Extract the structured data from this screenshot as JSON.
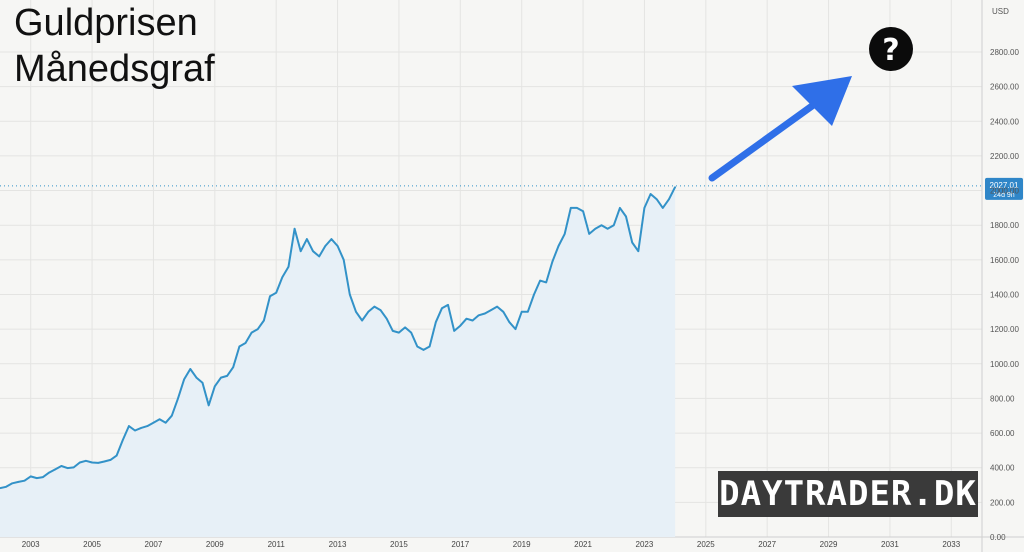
{
  "header": {
    "title_line1": "Guldprisen",
    "title_line2": "Månedsgraf"
  },
  "watermark": "DAYTRADER.DK",
  "annotation": {
    "question_mark": "?",
    "arrow_color": "#2f6fe8"
  },
  "price_label": {
    "value": "2027.01",
    "countdown": "24d 9h"
  },
  "chart_data": {
    "type": "area",
    "ylabel": "USD",
    "ylim": [
      0,
      3100
    ],
    "xlim": [
      2002.0,
      2034.0
    ],
    "grid": true,
    "line_color": "#3392c8",
    "fill_color": "#e7f0f7",
    "x_ticks": [
      "2003",
      "2005",
      "2007",
      "2009",
      "2011",
      "2013",
      "2015",
      "2017",
      "2019",
      "2021",
      "2023",
      "2025",
      "2027",
      "2029",
      "2031",
      "2033"
    ],
    "y_ticks": [
      "0.00",
      "200.00",
      "400.00",
      "600.00",
      "800.00",
      "1000.00",
      "1200.00",
      "1400.00",
      "1600.00",
      "1800.00",
      "2000.00",
      "2200.00",
      "2400.00",
      "2600.00",
      "2800.00"
    ],
    "series": [
      {
        "x": [
          2002.0,
          2002.2,
          2002.4,
          2002.6,
          2002.8,
          2003.0,
          2003.2,
          2003.4,
          2003.6,
          2003.8,
          2004.0,
          2004.2,
          2004.4,
          2004.6,
          2004.8,
          2005.0,
          2005.2,
          2005.4,
          2005.6,
          2005.8,
          2006.0,
          2006.2,
          2006.4,
          2006.6,
          2006.8,
          2007.0,
          2007.2,
          2007.4,
          2007.6,
          2007.8,
          2008.0,
          2008.2,
          2008.4,
          2008.6,
          2008.8,
          2009.0,
          2009.2,
          2009.4,
          2009.6,
          2009.8,
          2010.0,
          2010.2,
          2010.4,
          2010.6,
          2010.8,
          2011.0,
          2011.2,
          2011.4,
          2011.6,
          2011.8,
          2012.0,
          2012.2,
          2012.4,
          2012.6,
          2012.8,
          2013.0,
          2013.2,
          2013.4,
          2013.6,
          2013.8,
          2014.0,
          2014.2,
          2014.4,
          2014.6,
          2014.8,
          2015.0,
          2015.2,
          2015.4,
          2015.6,
          2015.8,
          2016.0,
          2016.2,
          2016.4,
          2016.6,
          2016.8,
          2017.0,
          2017.2,
          2017.4,
          2017.6,
          2017.8,
          2018.0,
          2018.2,
          2018.4,
          2018.6,
          2018.8,
          2019.0,
          2019.2,
          2019.4,
          2019.6,
          2019.8,
          2020.0,
          2020.2,
          2020.4,
          2020.6,
          2020.8,
          2021.0,
          2021.2,
          2021.4,
          2021.6,
          2021.8,
          2022.0,
          2022.2,
          2022.4,
          2022.6,
          2022.8,
          2023.0,
          2023.2,
          2023.4,
          2023.6,
          2023.8,
          2024.0
        ],
        "values": [
          282,
          290,
          310,
          318,
          325,
          350,
          340,
          346,
          372,
          390,
          410,
          398,
          402,
          430,
          440,
          430,
          428,
          436,
          445,
          470,
          560,
          640,
          615,
          630,
          640,
          660,
          680,
          660,
          700,
          800,
          910,
          970,
          920,
          890,
          760,
          870,
          920,
          930,
          980,
          1100,
          1120,
          1180,
          1200,
          1250,
          1390,
          1410,
          1500,
          1560,
          1780,
          1650,
          1720,
          1650,
          1620,
          1680,
          1720,
          1680,
          1600,
          1400,
          1300,
          1250,
          1300,
          1330,
          1310,
          1260,
          1190,
          1180,
          1210,
          1180,
          1100,
          1080,
          1100,
          1240,
          1320,
          1340,
          1190,
          1220,
          1260,
          1250,
          1280,
          1290,
          1310,
          1330,
          1300,
          1240,
          1200,
          1300,
          1300,
          1400,
          1480,
          1470,
          1590,
          1680,
          1750,
          1900,
          1900,
          1880,
          1750,
          1780,
          1800,
          1780,
          1800,
          1900,
          1850,
          1700,
          1650,
          1900,
          1980,
          1950,
          1900,
          1950,
          2020
        ]
      }
    ]
  }
}
